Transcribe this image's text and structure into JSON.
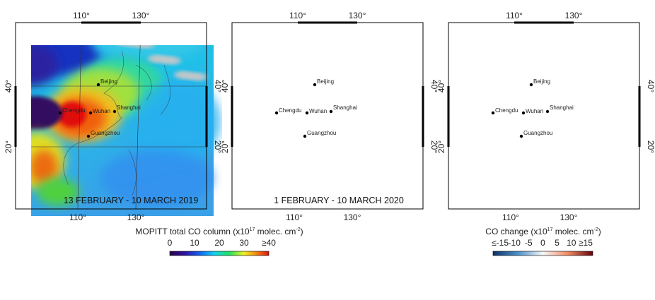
{
  "panels": [
    {
      "period": "13 FEBRUARY - 10 MARCH 2019"
    },
    {
      "period": "1 FEBRUARY - 10 MARCH 2020"
    },
    {
      "period": null
    }
  ],
  "axes": {
    "lon": [
      "110°",
      "130°"
    ],
    "lat": [
      "40°",
      "20°"
    ]
  },
  "cities": [
    "Beijing",
    "Chengdu",
    "Wuhan",
    "Shanghai",
    "Guangzhou"
  ],
  "colorbars": [
    {
      "title": [
        "MOPITT total CO column (x10",
        "17",
        " molec. cm",
        "-2",
        ")"
      ],
      "ticks": [
        "0",
        "10",
        "20",
        "30",
        "≥40"
      ]
    },
    {
      "title": [
        "CO change (x10",
        "17",
        " molec. cm",
        "-2",
        ")"
      ],
      "ticks": [
        "≤-15",
        "-10",
        "-5",
        "0",
        "5",
        "10",
        "≥15"
      ]
    }
  ]
}
